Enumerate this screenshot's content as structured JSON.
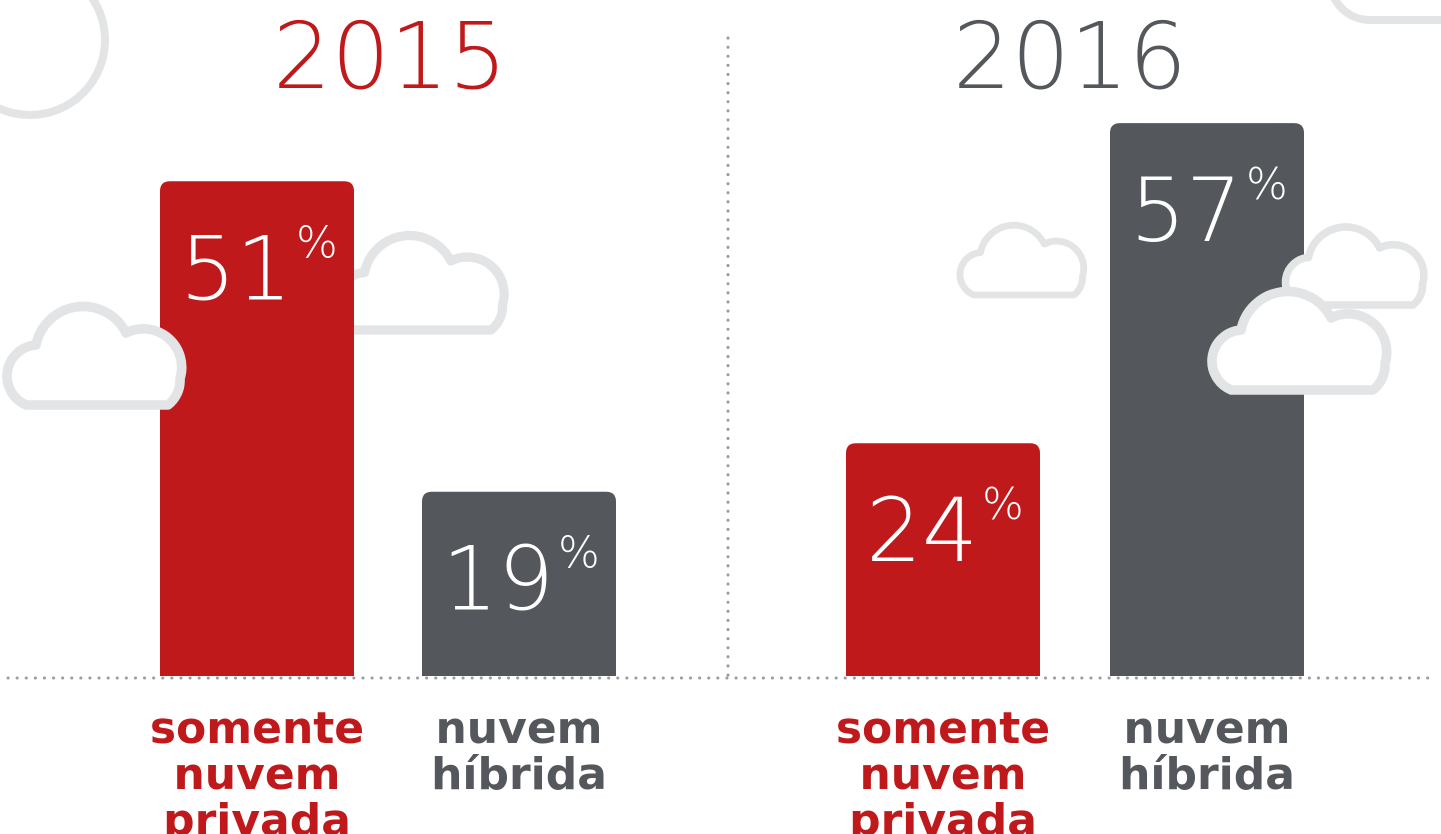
{
  "chart_data": [
    {
      "type": "bar",
      "title": "2015",
      "title_color": "#c0191b",
      "categories": [
        "somente nuvem privada",
        "nuvem híbrida"
      ],
      "values": [
        51,
        19
      ],
      "value_labels": [
        "51%",
        "19%"
      ],
      "colors": [
        "#c0191b",
        "#54575b"
      ]
    },
    {
      "type": "bar",
      "title": "2016",
      "title_color": "#54575b",
      "categories": [
        "somente nuvem privada",
        "nuvem híbrida"
      ],
      "values": [
        24,
        57
      ],
      "value_labels": [
        "24%",
        "57%"
      ],
      "colors": [
        "#c0191b",
        "#54575b"
      ]
    }
  ]
}
